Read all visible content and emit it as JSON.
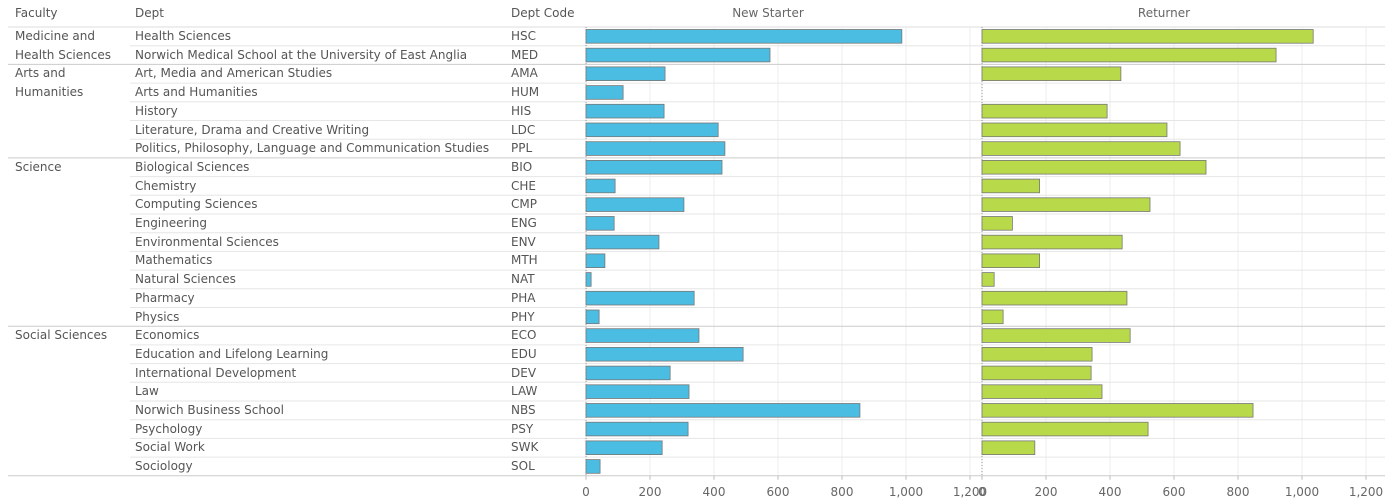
{
  "table": {
    "columns": [
      "Faculty",
      "Dept",
      "Dept Code"
    ],
    "rows": [
      [
        "Medicine and Health Sciences",
        "Health Sciences",
        "HSC"
      ],
      [
        null,
        "Norwich Medical School at the University of East Anglia",
        "MED"
      ],
      [
        "Arts and Humanities",
        "Art, Media and American Studies",
        "AMA"
      ],
      [
        null,
        "Arts and Humanities",
        "HUM"
      ],
      [
        null,
        "History",
        "HIS"
      ],
      [
        null,
        "Literature, Drama and Creative Writing",
        "LDC"
      ],
      [
        null,
        "Politics, Philosophy, Language and Communication Studies",
        "PPL"
      ],
      [
        "Science",
        "Biological Sciences",
        "BIO"
      ],
      [
        null,
        "Chemistry",
        "CHE"
      ],
      [
        null,
        "Computing Sciences",
        "CMP"
      ],
      [
        null,
        "Engineering",
        "ENG"
      ],
      [
        null,
        "Environmental Sciences",
        "ENV"
      ],
      [
        null,
        "Mathematics",
        "MTH"
      ],
      [
        null,
        "Natural Sciences",
        "NAT"
      ],
      [
        null,
        "Pharmacy",
        "PHA"
      ],
      [
        null,
        "Physics",
        "PHY"
      ],
      [
        "Social Sciences",
        "Economics",
        "ECO"
      ],
      [
        null,
        "Education and Lifelong Learning",
        "EDU"
      ],
      [
        null,
        "International Development",
        "DEV"
      ],
      [
        null,
        "Law",
        "LAW"
      ],
      [
        null,
        "Norwich Business School",
        "NBS"
      ],
      [
        null,
        "Psychology",
        "PSY"
      ],
      [
        null,
        "Social Work",
        "SWK"
      ],
      [
        null,
        "Sociology",
        "SOL"
      ]
    ]
  },
  "chart_data": [
    {
      "type": "bar",
      "orientation": "horizontal",
      "title": "New Starter",
      "color": "#4bbde3",
      "values": [
        987,
        575,
        247,
        116,
        244,
        413,
        434,
        425,
        91,
        306,
        88,
        228,
        59,
        16,
        338,
        41,
        353,
        491,
        263,
        322,
        856,
        319,
        238,
        44
      ],
      "xlim": [
        0,
        1200
      ],
      "xticks": [
        0,
        200,
        400,
        600,
        800,
        {
          "value": 1000,
          "label": "1,000"
        },
        {
          "value": 1200,
          "label": "1,200"
        }
      ],
      "grid": true
    },
    {
      "type": "bar",
      "orientation": "horizontal",
      "title": "Returner",
      "color": "#b8d94a",
      "values": [
        1035,
        919,
        434,
        null,
        391,
        578,
        619,
        700,
        180,
        525,
        95,
        438,
        180,
        38,
        453,
        66,
        463,
        344,
        341,
        375,
        847,
        519,
        165,
        null
      ],
      "xlim": [
        0,
        1200
      ],
      "xticks": [
        0,
        200,
        400,
        600,
        800,
        {
          "value": 1000,
          "label": "1,000"
        },
        {
          "value": 1200,
          "label": "1,200"
        }
      ],
      "grid": true
    }
  ]
}
